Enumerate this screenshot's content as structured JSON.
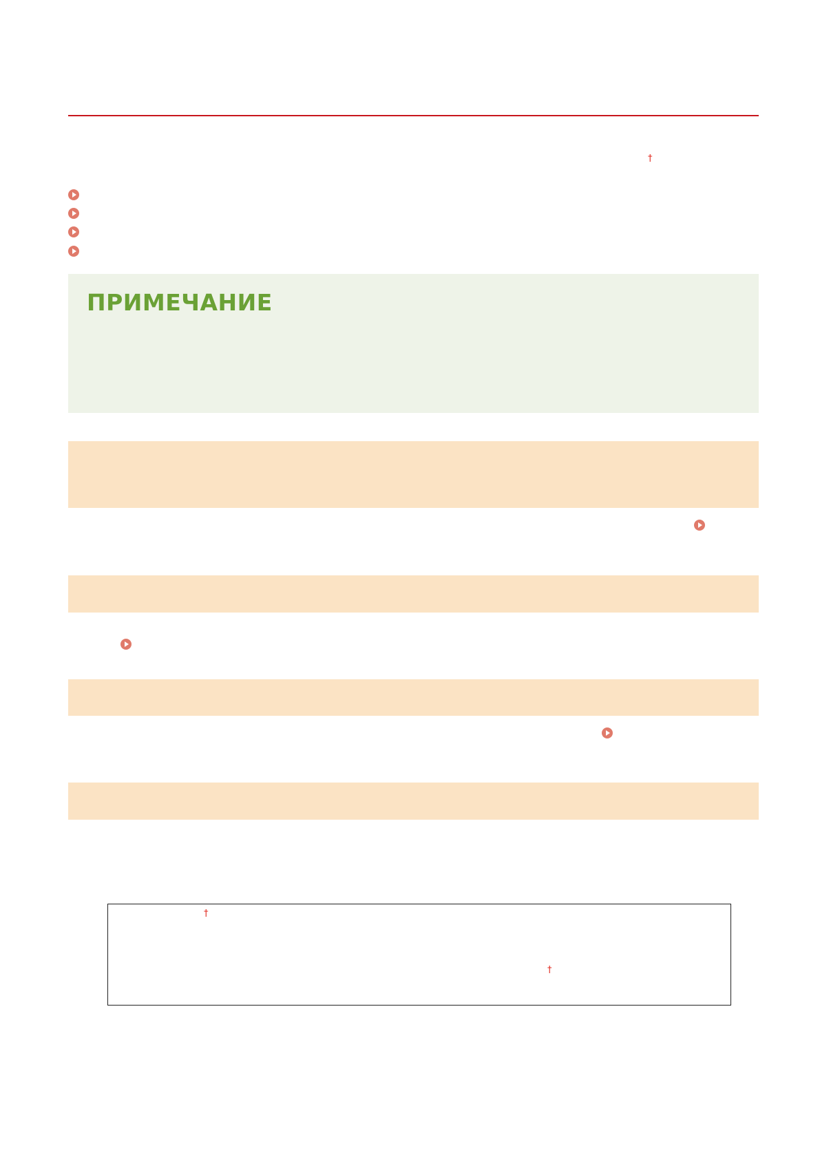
{
  "note": {
    "title": "ПРИМЕЧАНИЕ"
  },
  "colors": {
    "rule": "#c8161d",
    "note_bg": "#eef3e8",
    "note_title": "#6aa135",
    "section_band": "#fbe3c4",
    "link_icon": "#e07a6a",
    "dagger": "#e0291f"
  },
  "icons": {
    "link": "circle-play-icon",
    "footnote": "dagger-icon"
  },
  "footnote_mark": "†"
}
